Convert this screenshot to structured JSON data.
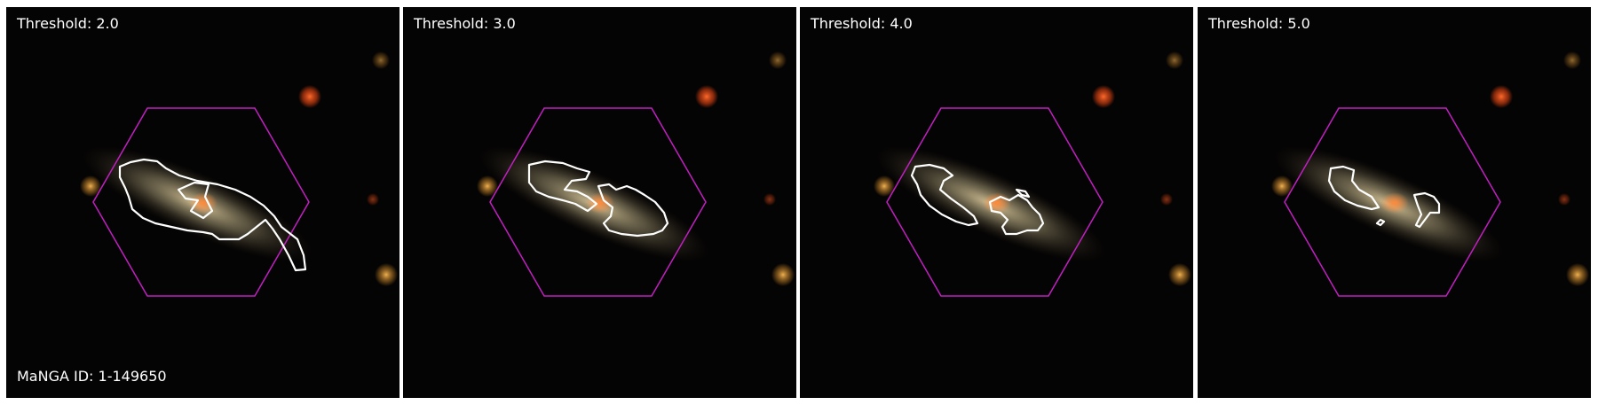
{
  "panels": [
    {
      "threshold_label": "Threshold: 2.0"
    },
    {
      "threshold_label": "Threshold: 3.0"
    },
    {
      "threshold_label": "Threshold: 4.0"
    },
    {
      "threshold_label": "Threshold: 5.0"
    }
  ],
  "galaxy": {
    "manga_id_label": "MaNGA ID: 1-149650"
  },
  "colors": {
    "background": "#050404",
    "hexagon": "#c21fc2",
    "contour": "#ffffff",
    "galaxy_core": "#e8893a",
    "galaxy_disk": "#a8a080",
    "star_red": "#ff5a1e",
    "star_gold": "#e0a040"
  },
  "icons": [
    "ifu-hexagon-footprint",
    "emission-contour"
  ]
}
